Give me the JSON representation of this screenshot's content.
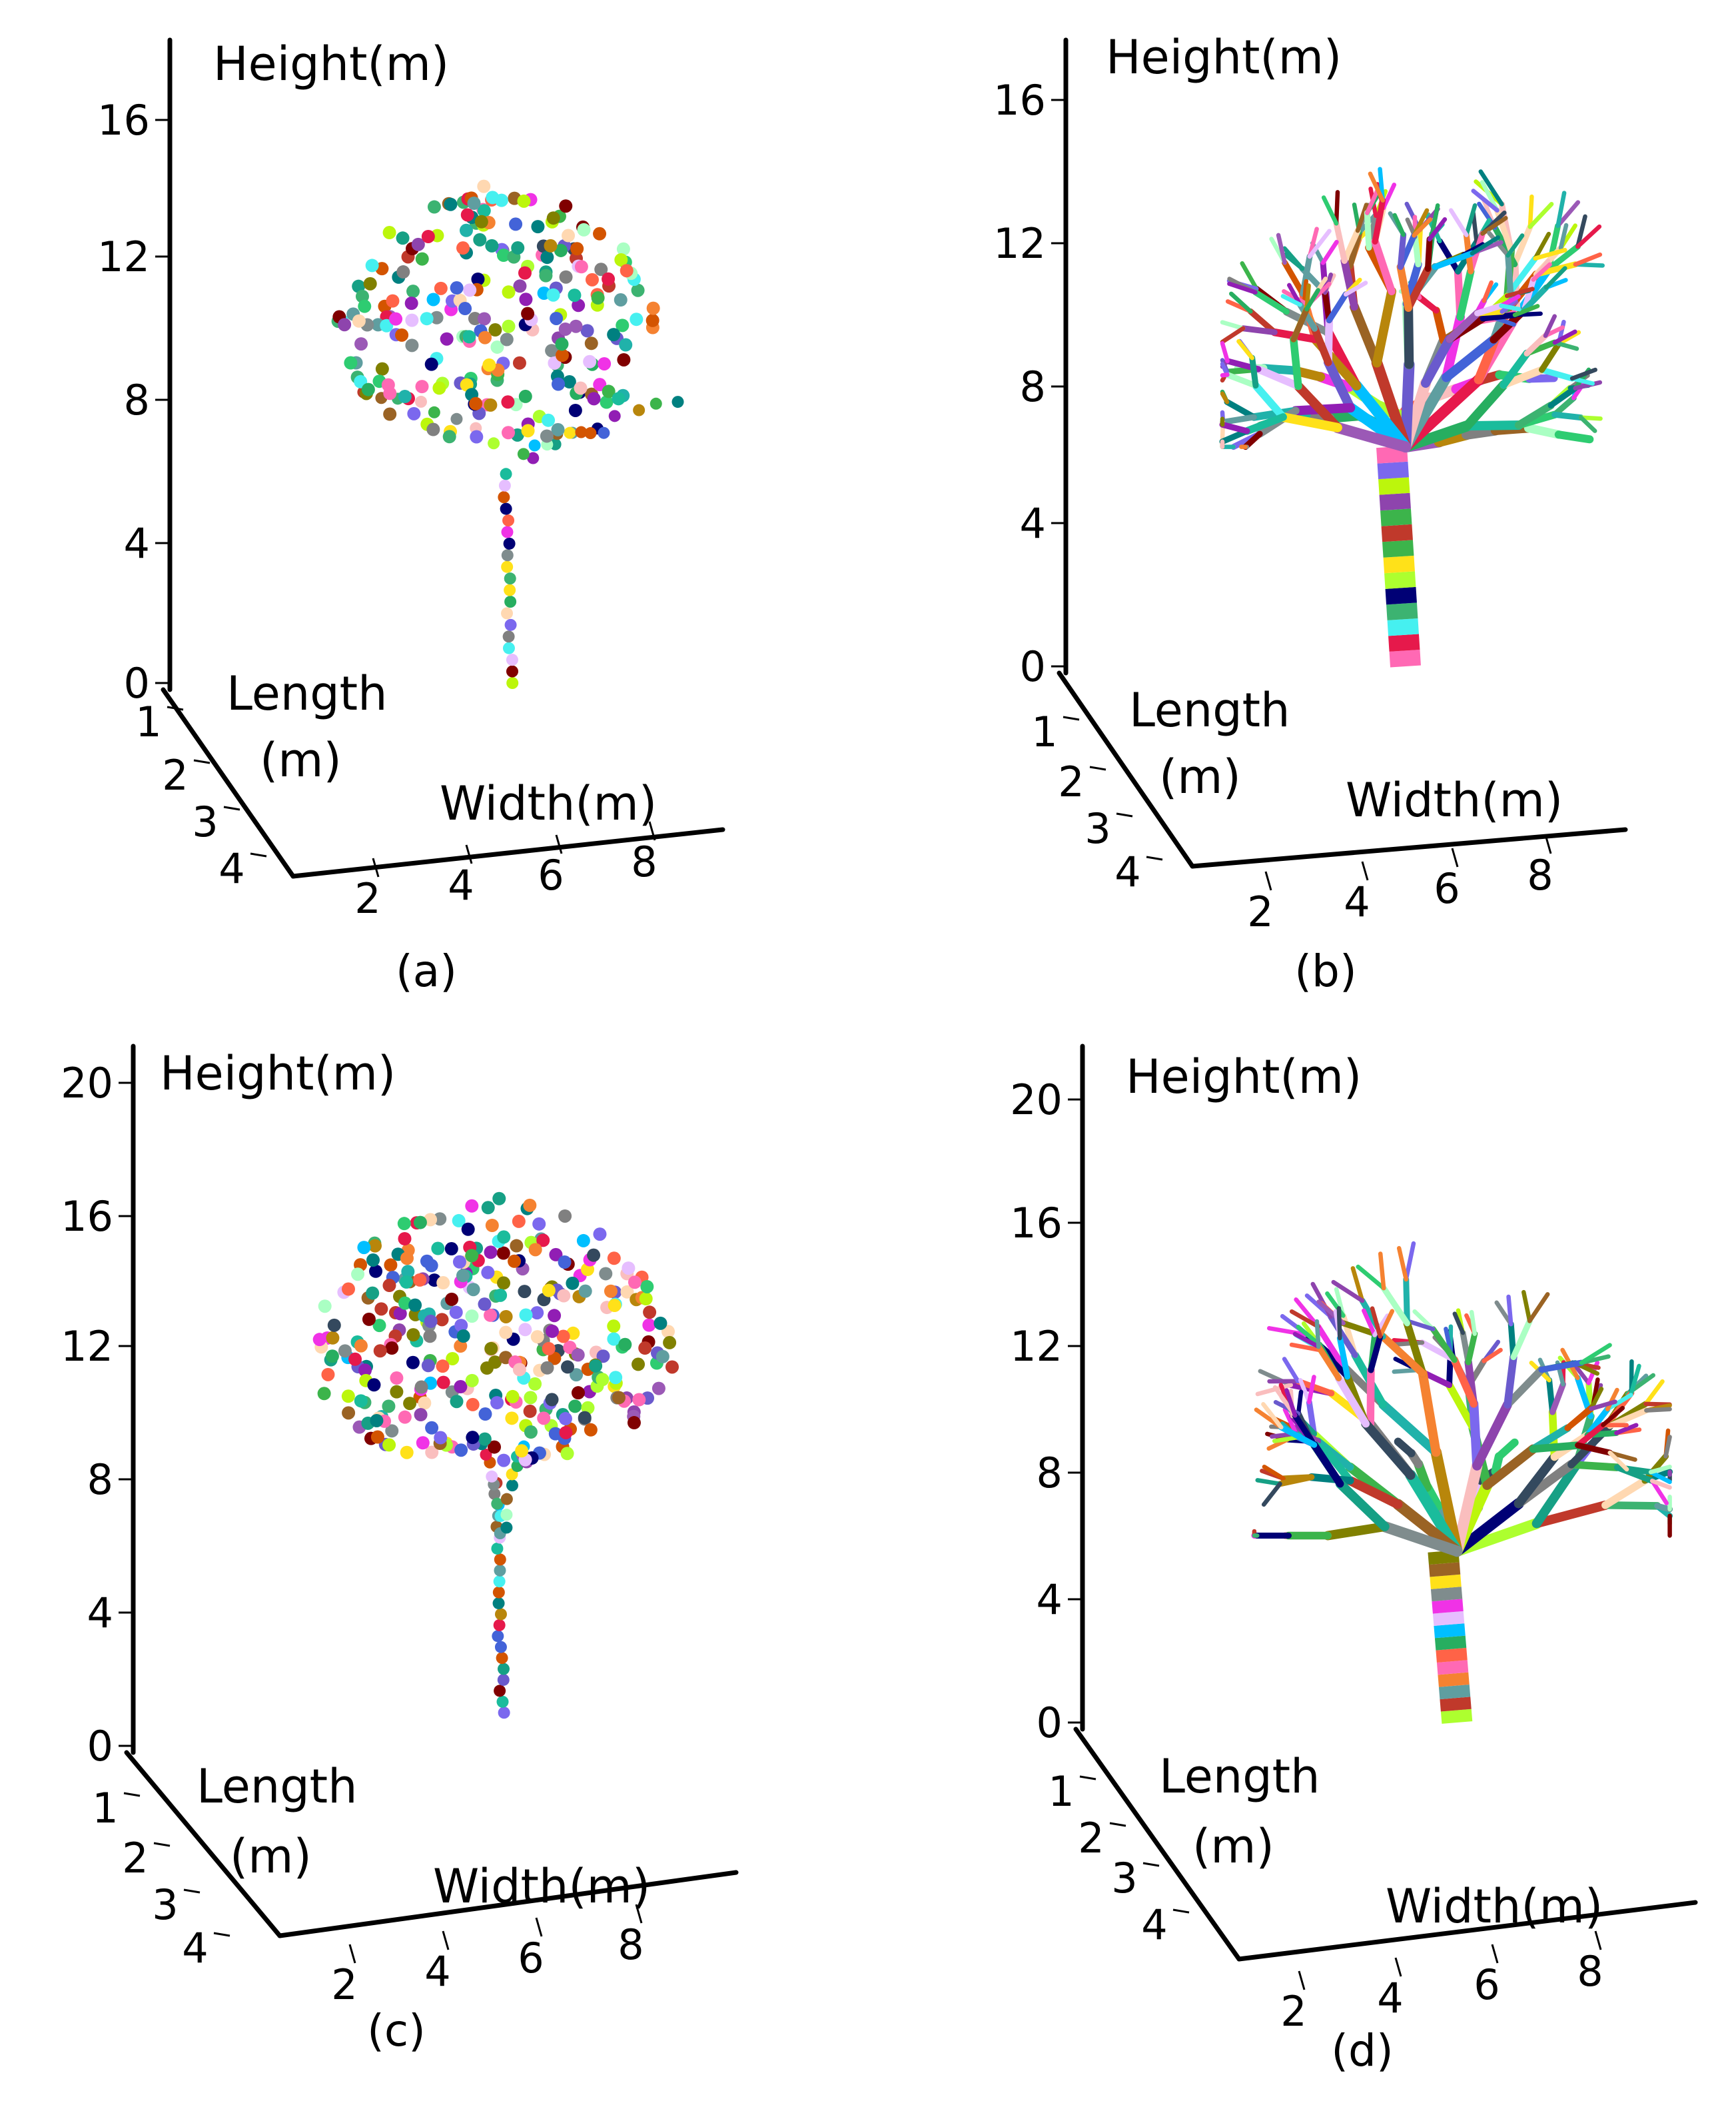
{
  "chart_data": [
    {
      "type": "scatter",
      "panel": "(a)",
      "rendering": "3d-point-cloud",
      "zlabel": "Height(m)",
      "ylabel": "Length\n(m)",
      "xlabel": "Width(m)",
      "zlim": [
        0,
        18
      ],
      "z_ticks": [
        "0",
        "4",
        "8",
        "12",
        "16"
      ],
      "y_ticks": [
        "1",
        "2",
        "3",
        "4"
      ],
      "x_ticks": [
        "2",
        "4",
        "6",
        "8"
      ],
      "grid": false,
      "colors": "random per point",
      "trunk": {
        "x": 5.0,
        "height_range": [
          0,
          6.0
        ]
      },
      "crown": {
        "x_range": [
          1.5,
          8.8
        ],
        "height_range": [
          6.0,
          14.0
        ],
        "center": [
          4.7,
          10.0
        ]
      },
      "branches": [
        {
          "from": [
            5.0,
            6.0
          ],
          "to": [
            8.6,
            8.0
          ]
        },
        {
          "from": [
            5.0,
            6.2
          ],
          "to": [
            7.0,
            7.2
          ]
        },
        {
          "from": [
            5.0,
            6.5
          ],
          "to": [
            1.8,
            8.3
          ]
        }
      ]
    },
    {
      "type": "line",
      "panel": "(b)",
      "rendering": "3d-cylinder-skeleton",
      "zlabel": "Height(m)",
      "ylabel": "Length\n(m)",
      "xlabel": "Width(m)",
      "zlim": [
        0,
        18
      ],
      "z_ticks": [
        "0",
        "4",
        "8",
        "12",
        "16"
      ],
      "y_ticks": [
        "1",
        "2",
        "3",
        "4"
      ],
      "x_ticks": [
        "2",
        "4",
        "6",
        "8"
      ],
      "grid": false,
      "colors": "random per segment",
      "trunk": {
        "x": 5.0,
        "height_range": [
          0,
          6.2
        ]
      },
      "crown": {
        "x_range": [
          1.5,
          8.9
        ],
        "height_range": [
          6.2,
          14.0
        ],
        "center": [
          4.7,
          10.0
        ]
      },
      "branches": [
        {
          "from": [
            5.0,
            6.2
          ],
          "to": [
            8.9,
            6.4
          ]
        },
        {
          "from": [
            5.0,
            7.2
          ],
          "to": [
            8.1,
            8.2
          ]
        },
        {
          "from": [
            5.0,
            6.6
          ],
          "to": [
            1.9,
            6.8
          ]
        },
        {
          "from": [
            5.0,
            7.0
          ],
          "to": [
            1.4,
            8.5
          ]
        }
      ]
    },
    {
      "type": "scatter",
      "panel": "(c)",
      "rendering": "3d-point-cloud",
      "zlabel": "Height(m)",
      "ylabel": "Length\n(m)",
      "xlabel": "Width(m)",
      "zlim": [
        0,
        22
      ],
      "z_ticks": [
        "0",
        "4",
        "8",
        "12",
        "16",
        "20"
      ],
      "y_ticks": [
        "1",
        "2",
        "3",
        "4"
      ],
      "x_ticks": [
        "2",
        "4",
        "6",
        "8"
      ],
      "grid": false,
      "colors": "random per point",
      "trunk": {
        "x": 5.2,
        "height_range": [
          1.0,
          8.0
        ]
      },
      "crown": {
        "x_range": [
          1.0,
          9.0
        ],
        "height_range": [
          8.0,
          17.0
        ],
        "center": [
          5.0,
          12.0
        ]
      },
      "branches": [
        {
          "from": [
            5.2,
            6.0
          ],
          "to": [
            4.8,
            9.0
          ]
        },
        {
          "from": [
            5.2,
            6.0
          ],
          "to": [
            5.6,
            9.0
          ]
        }
      ]
    },
    {
      "type": "line",
      "panel": "(d)",
      "rendering": "3d-cylinder-skeleton",
      "zlabel": "Height(m)",
      "ylabel": "Length\n(m)",
      "xlabel": "Width(m)",
      "zlim": [
        0,
        22
      ],
      "z_ticks": [
        "0",
        "4",
        "8",
        "12",
        "16",
        "20"
      ],
      "y_ticks": [
        "1",
        "2",
        "3",
        "4"
      ],
      "x_ticks": [
        "2",
        "4",
        "6",
        "8"
      ],
      "grid": false,
      "colors": "random per segment",
      "trunk": {
        "x": 5.2,
        "height_range": [
          0,
          5.5
        ]
      },
      "crown": {
        "x_range": [
          1.5,
          9.1
        ],
        "height_range": [
          6.0,
          17.5
        ],
        "center": [
          5.0,
          12.0
        ]
      },
      "branches": [
        {
          "from": [
            5.2,
            5.5
          ],
          "to": [
            4.0,
            9.0
          ]
        },
        {
          "from": [
            5.2,
            5.5
          ],
          "to": [
            6.3,
            9.0
          ]
        }
      ]
    }
  ]
}
